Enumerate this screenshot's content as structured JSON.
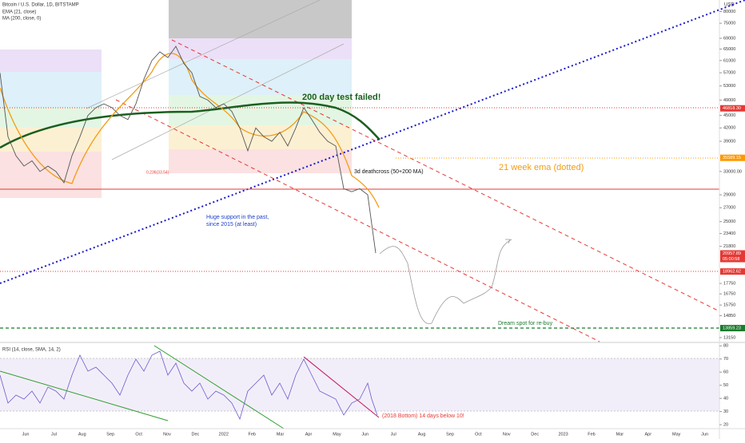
{
  "header": {
    "symbol": "Bitcoin / U.S. Dollar, 1D, BITSTAMP",
    "indicators": [
      "EMA (21, close)",
      "MA (200, close, 0)"
    ],
    "currency": "USD"
  },
  "price": {
    "log": true,
    "range": [
      12860,
      85300
    ],
    "values": [
      57000,
      40000,
      36000,
      34000,
      35000,
      33000,
      34000,
      33000,
      31000,
      36000,
      40000,
      45000,
      47000,
      48000,
      47000,
      45000,
      44000,
      48000,
      55000,
      61000,
      64000,
      62000,
      66000,
      60000,
      57000,
      50000,
      49000,
      47000,
      48000,
      46000,
      42000,
      37000,
      42000,
      40000,
      39000,
      41000,
      38000,
      42000,
      47000,
      44000,
      41000,
      39000,
      38000,
      30000,
      29500,
      30000,
      29000,
      21000
    ],
    "ticks": [
      80000,
      75000,
      69000,
      65000,
      61000,
      57000,
      53000,
      49000,
      45000,
      42000,
      39000,
      {
        "value": 33000,
        "label": "33000.00"
      },
      29000,
      27000,
      25000,
      23400,
      21800,
      17750,
      16750,
      15750,
      14850,
      13150
    ],
    "badges": [
      {
        "value": 46818.3,
        "label": "46818.30",
        "color": "#e53935"
      },
      {
        "value": 35589.15,
        "label": "35589.15",
        "color": "#ff9800"
      },
      {
        "value": 20957.89,
        "label": "20957.89",
        "color": "#e53935"
      },
      {
        "value": 18962.62,
        "label": "18962.62",
        "color": "#e53935"
      },
      {
        "value": 13859.23,
        "label": "13859.23",
        "color": "#1b7a2e"
      }
    ],
    "countdown": "05:00:58"
  },
  "time_axis": [
    "Jun",
    "Jul",
    "Aug",
    "Sep",
    "Oct",
    "Nov",
    "Dec",
    "2022",
    "Feb",
    "Mar",
    "Apr",
    "May",
    "Jun",
    "Jul",
    "Aug",
    "Sep",
    "Oct",
    "Nov",
    "Dec",
    "2023",
    "Feb",
    "Mar",
    "Apr",
    "May",
    "Jun"
  ],
  "annotations": {
    "ma_test": "200 day test failed!",
    "ema_note": "21 week ema (dotted)",
    "deathcross": "3d deathcross (50+200 MA)",
    "support": [
      "Huge support in the past,",
      "since 2015 (at least)"
    ],
    "dream": "Dream spot for re-buy",
    "fib": "0.236(33.54)",
    "rsi_note": "(2018 Bottom) 14 days below 10!"
  },
  "rsi": {
    "title": "RSI (14, close, SMA, 14, 2)",
    "range": [
      17,
      82
    ],
    "ticks": [
      80,
      70,
      60,
      50,
      40,
      30,
      20
    ]
  }
}
